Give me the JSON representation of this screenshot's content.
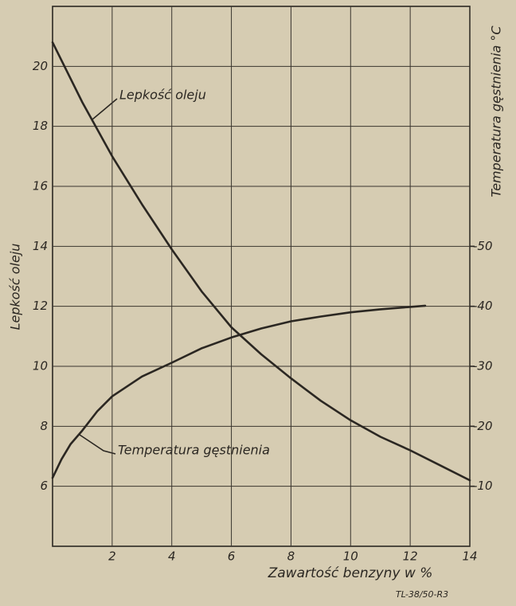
{
  "chart_data": {
    "type": "line",
    "x_label": "Zawartość benzyny w %",
    "y_label": "Lepkość oleju",
    "y2_label": "Temperatura gęstnienia °C",
    "annotations": [
      "Lepkość oleju",
      "Temperatura gęstnienia"
    ],
    "note": "TL-38/50-R3",
    "xlim": [
      0,
      14
    ],
    "xticks": [
      2,
      4,
      6,
      8,
      10,
      12,
      14
    ],
    "ylim": [
      4,
      22
    ],
    "yticks": [
      6,
      8,
      10,
      12,
      14,
      16,
      18,
      20
    ],
    "y2lim": [
      0,
      -90
    ],
    "y2ticks": [
      -10,
      -20,
      -30,
      -40,
      -50
    ],
    "grid": true,
    "series": [
      {
        "color": "#2b2722",
        "x": [
          0,
          1,
          2,
          3,
          4,
          5,
          6,
          7,
          8,
          9,
          10,
          11,
          12,
          13,
          14
        ],
        "values": [
          20.8,
          18.8,
          17.0,
          15.4,
          13.9,
          12.5,
          11.3,
          10.4,
          9.6,
          8.85,
          8.2,
          7.65,
          7.2,
          6.7,
          6.2
        ]
      },
      {
        "color": "#2b2722",
        "axis": "y2",
        "x": [
          0,
          0.3,
          0.6,
          1,
          1.5,
          2,
          3,
          4,
          5,
          6,
          7,
          8,
          9,
          10,
          11,
          12,
          12.5
        ],
        "values": [
          -11.4,
          -14.5,
          -17,
          -19.3,
          -22.5,
          -25,
          -28.3,
          -30.6,
          -33,
          -34.8,
          -36.3,
          -37.5,
          -38.3,
          -39,
          -39.5,
          -39.9,
          -40.1
        ]
      }
    ]
  }
}
